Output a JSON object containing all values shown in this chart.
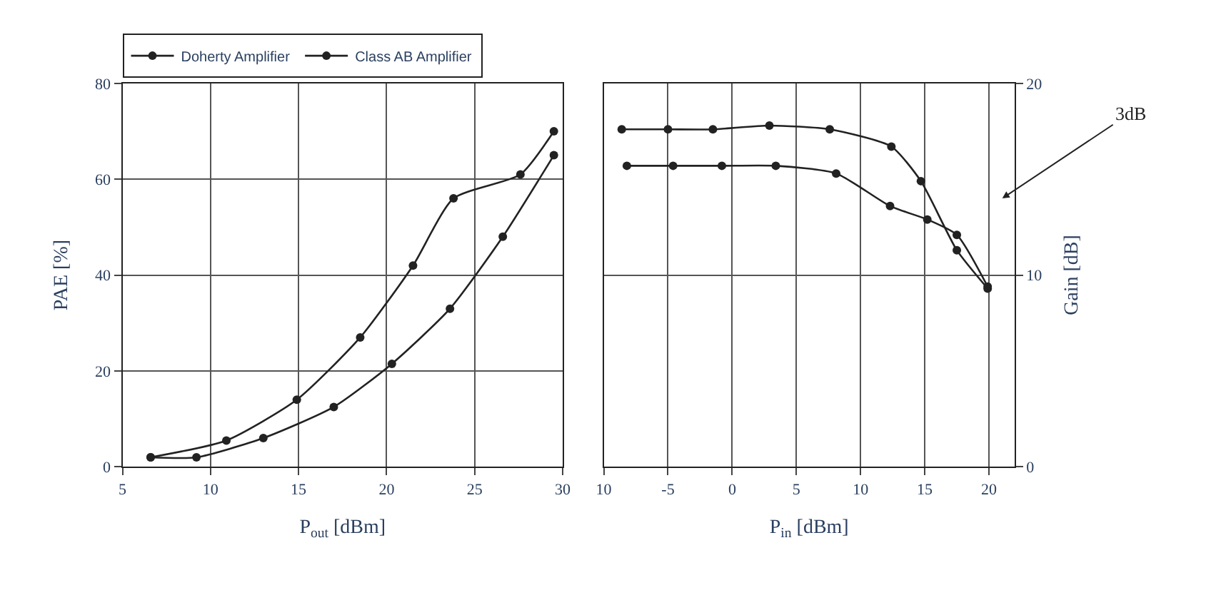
{
  "chart_data": [
    {
      "type": "line",
      "xlabel": "P$_{out}$ [dBm]",
      "ylabel": "PAE [%]",
      "xlim": [
        5,
        30
      ],
      "xticks": [
        5,
        10,
        15,
        20,
        25,
        30
      ],
      "ylim": [
        0,
        80
      ],
      "yticks": [
        0,
        20,
        40,
        60,
        80
      ],
      "grid": true,
      "legend": "top left",
      "marker": "circle",
      "line_style": "solid",
      "series": [
        {
          "name": "Doherty Amplifier",
          "color": "#222222",
          "x": [
            6.6,
            10.9,
            14.9,
            18.5,
            21.5,
            23.8,
            27.6,
            29.5
          ],
          "values": [
            2,
            5.5,
            14,
            27,
            42,
            56,
            61,
            70
          ]
        },
        {
          "name": "Class AB Amplifier",
          "color": "#222222",
          "x": [
            6.6,
            9.2,
            13.0,
            17.0,
            20.3,
            23.6,
            26.6,
            29.5
          ],
          "values": [
            2,
            2,
            6,
            12.5,
            21.5,
            33,
            48,
            65
          ]
        }
      ]
    },
    {
      "type": "line",
      "xlabel": "P$_{in}$ [dBm]",
      "y2label": "Gain [dB]",
      "xlim": [
        -10,
        22
      ],
      "xticks": [
        {
          "value": -10,
          "label": "10"
        },
        -5,
        0,
        5,
        10,
        15,
        20
      ],
      "y2lim": [
        0,
        20
      ],
      "y2ticks": [
        0,
        10,
        20
      ],
      "grid": true,
      "legend": false,
      "marker": "circle",
      "line_style": "solid",
      "annotations": [
        "3dB"
      ],
      "series": [
        {
          "color": "#222222",
          "axis": "y2",
          "x": [
            -8.6,
            -5.0,
            -1.5,
            2.9,
            7.6,
            12.4,
            14.7,
            17.5,
            19.9
          ],
          "values": [
            17.6,
            17.6,
            17.6,
            17.8,
            17.6,
            16.7,
            14.9,
            11.3,
            9.3
          ]
        },
        {
          "color": "#222222",
          "axis": "y2",
          "x": [
            -8.2,
            -4.6,
            -0.8,
            3.4,
            8.1,
            12.3,
            15.2,
            17.5,
            19.9
          ],
          "values": [
            15.7,
            15.7,
            15.7,
            15.7,
            15.3,
            13.6,
            12.9,
            12.1,
            9.4
          ]
        }
      ]
    }
  ]
}
